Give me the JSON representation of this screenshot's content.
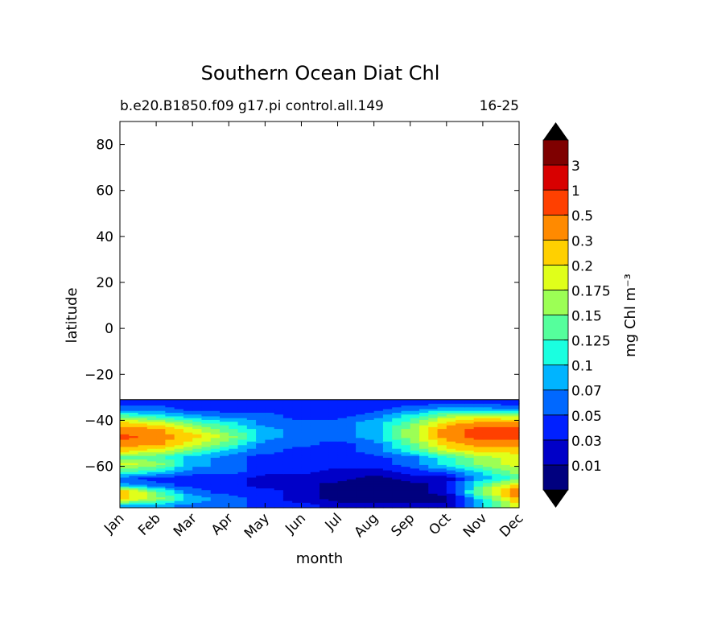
{
  "chart_data": {
    "type": "heatmap",
    "title": "Southern Ocean Diat Chl",
    "subtitle_left": "b.e20.B1850.f09 g17.pi control.all.149",
    "subtitle_right": "16-25",
    "xlabel": "month",
    "ylabel": "latitude",
    "x_categories": [
      "Jan",
      "Feb",
      "Mar",
      "Apr",
      "May",
      "Jun",
      "Jul",
      "Aug",
      "Sep",
      "Oct",
      "Nov",
      "Dec"
    ],
    "y_ticks": [
      "80",
      "60",
      "40",
      "20",
      "0",
      "−20",
      "−40",
      "−60"
    ],
    "y_tick_values": [
      80,
      60,
      40,
      20,
      0,
      -20,
      -40,
      -60
    ],
    "ylim": [
      -78,
      90
    ],
    "data_lat_range": [
      -78,
      -31
    ],
    "colorbar": {
      "label": "mg Chl m⁻³",
      "extend": "both",
      "levels": [
        "0.01",
        "0.03",
        "0.05",
        "0.07",
        "0.1",
        "0.125",
        "0.15",
        "0.175",
        "0.2",
        "0.3",
        "0.5",
        "1",
        "3"
      ],
      "colors": [
        "#00007f",
        "#0000c8",
        "#0020ff",
        "#0068ff",
        "#00b4ff",
        "#1affe0",
        "#55ff9c",
        "#9cff55",
        "#e0ff1a",
        "#ffd000",
        "#ff8a00",
        "#ff4000",
        "#d80000",
        "#7f0000"
      ],
      "under_color": "#000000",
      "over_color": "#000000"
    },
    "lat_rows": [
      -77,
      -74,
      -71,
      -68,
      -65,
      -62,
      -59,
      -56,
      -53,
      -50,
      -47,
      -44,
      -41,
      -38,
      -35,
      -32
    ],
    "field_level_index": [
      [
        4,
        4,
        3,
        3,
        2,
        2,
        1,
        1,
        1,
        1,
        4,
        8
      ],
      [
        9,
        7,
        4,
        3,
        2,
        1,
        0,
        0,
        0,
        0,
        5,
        10
      ],
      [
        10,
        6,
        3,
        2,
        2,
        1,
        0,
        0,
        0,
        1,
        7,
        11
      ],
      [
        4,
        3,
        2,
        2,
        1,
        1,
        0,
        0,
        0,
        1,
        6,
        9
      ],
      [
        3,
        2,
        2,
        2,
        1,
        1,
        1,
        0,
        1,
        1,
        4,
        6
      ],
      [
        6,
        5,
        3,
        3,
        2,
        2,
        1,
        1,
        2,
        3,
        5,
        7
      ],
      [
        8,
        7,
        4,
        3,
        2,
        2,
        2,
        2,
        3,
        5,
        7,
        8
      ],
      [
        6,
        6,
        4,
        3,
        2,
        2,
        2,
        2,
        3,
        5,
        7,
        8
      ],
      [
        9,
        8,
        6,
        4,
        3,
        2,
        2,
        3,
        5,
        8,
        9,
        9
      ],
      [
        10,
        10,
        8,
        6,
        3,
        3,
        2,
        3,
        6,
        9,
        10,
        10
      ],
      [
        11,
        10,
        9,
        7,
        4,
        3,
        3,
        4,
        7,
        10,
        11,
        11
      ],
      [
        10,
        10,
        8,
        6,
        4,
        3,
        3,
        4,
        7,
        10,
        11,
        11
      ],
      [
        9,
        8,
        6,
        5,
        3,
        3,
        3,
        4,
        6,
        9,
        10,
        10
      ],
      [
        6,
        5,
        4,
        3,
        3,
        2,
        2,
        3,
        5,
        7,
        8,
        7
      ],
      [
        3,
        3,
        2,
        2,
        2,
        2,
        2,
        2,
        3,
        4,
        4,
        3
      ],
      [
        2,
        2,
        2,
        2,
        2,
        2,
        2,
        2,
        2,
        2,
        2,
        2
      ]
    ]
  }
}
